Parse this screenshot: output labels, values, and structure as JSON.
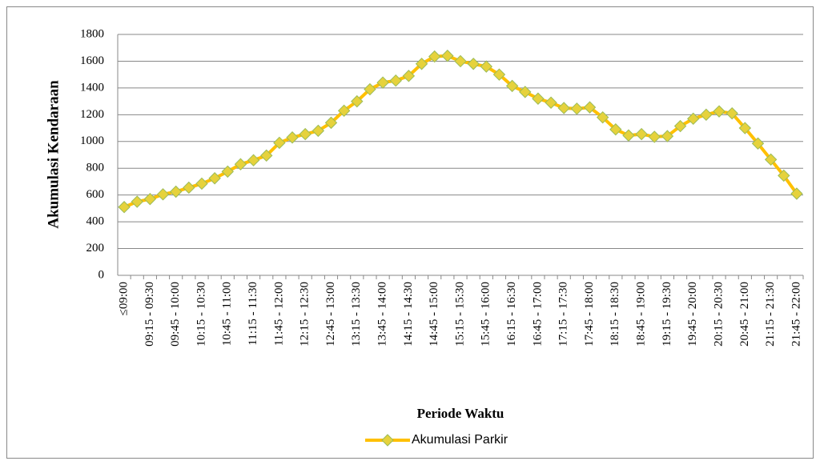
{
  "chart_data": {
    "type": "line",
    "y_label": "Akumulasi Kendaraan",
    "x_label": "Periode Waktu",
    "categories": [
      "≤09:00",
      null,
      "09:15 - 09:30",
      null,
      "09:45 - 10:00",
      null,
      "10:15 - 10:30",
      null,
      "10:45 - 11:00",
      null,
      "11:15 - 11:30",
      null,
      "11:45 - 12:00",
      null,
      "12:15 - 12:30",
      null,
      "12:45 - 13:00",
      null,
      "13:15 - 13:30",
      null,
      "13:45 - 14:00",
      null,
      "14:15 - 14:30",
      null,
      "14:45 - 15:00",
      null,
      "15:15 - 15:30",
      null,
      "15:45 - 16:00",
      null,
      "16:15 - 16:30",
      null,
      "16:45 - 17:00",
      null,
      "17:15 - 17:30",
      null,
      "17:45 - 18:00",
      null,
      "18:15 - 18:30",
      null,
      "18:45 - 19:00",
      null,
      "19:15 - 19:30",
      null,
      "19:45 - 20:00",
      null,
      "20:15 - 20:30",
      null,
      "20:45 - 21:00",
      null,
      "21:15 - 21:30",
      null,
      "21:45 - 22:00"
    ],
    "series": [
      {
        "name": "Akumulasi Parkir",
        "color": "#ffc000",
        "marker_color": "#e6d23c",
        "values": [
          510,
          550,
          570,
          605,
          625,
          655,
          685,
          725,
          775,
          830,
          860,
          895,
          990,
          1030,
          1055,
          1080,
          1140,
          1230,
          1300,
          1390,
          1440,
          1455,
          1490,
          1580,
          1635,
          1640,
          1600,
          1580,
          1560,
          1500,
          1415,
          1370,
          1320,
          1290,
          1250,
          1245,
          1255,
          1180,
          1090,
          1045,
          1055,
          1035,
          1040,
          1115,
          1170,
          1200,
          1225,
          1210,
          1100,
          985,
          865,
          745,
          610
        ]
      }
    ],
    "ylim": [
      0,
      1800
    ],
    "yticks": [
      0,
      200,
      400,
      600,
      800,
      1000,
      1200,
      1400,
      1600,
      1800
    ],
    "grid": true,
    "legend": "bottom"
  }
}
